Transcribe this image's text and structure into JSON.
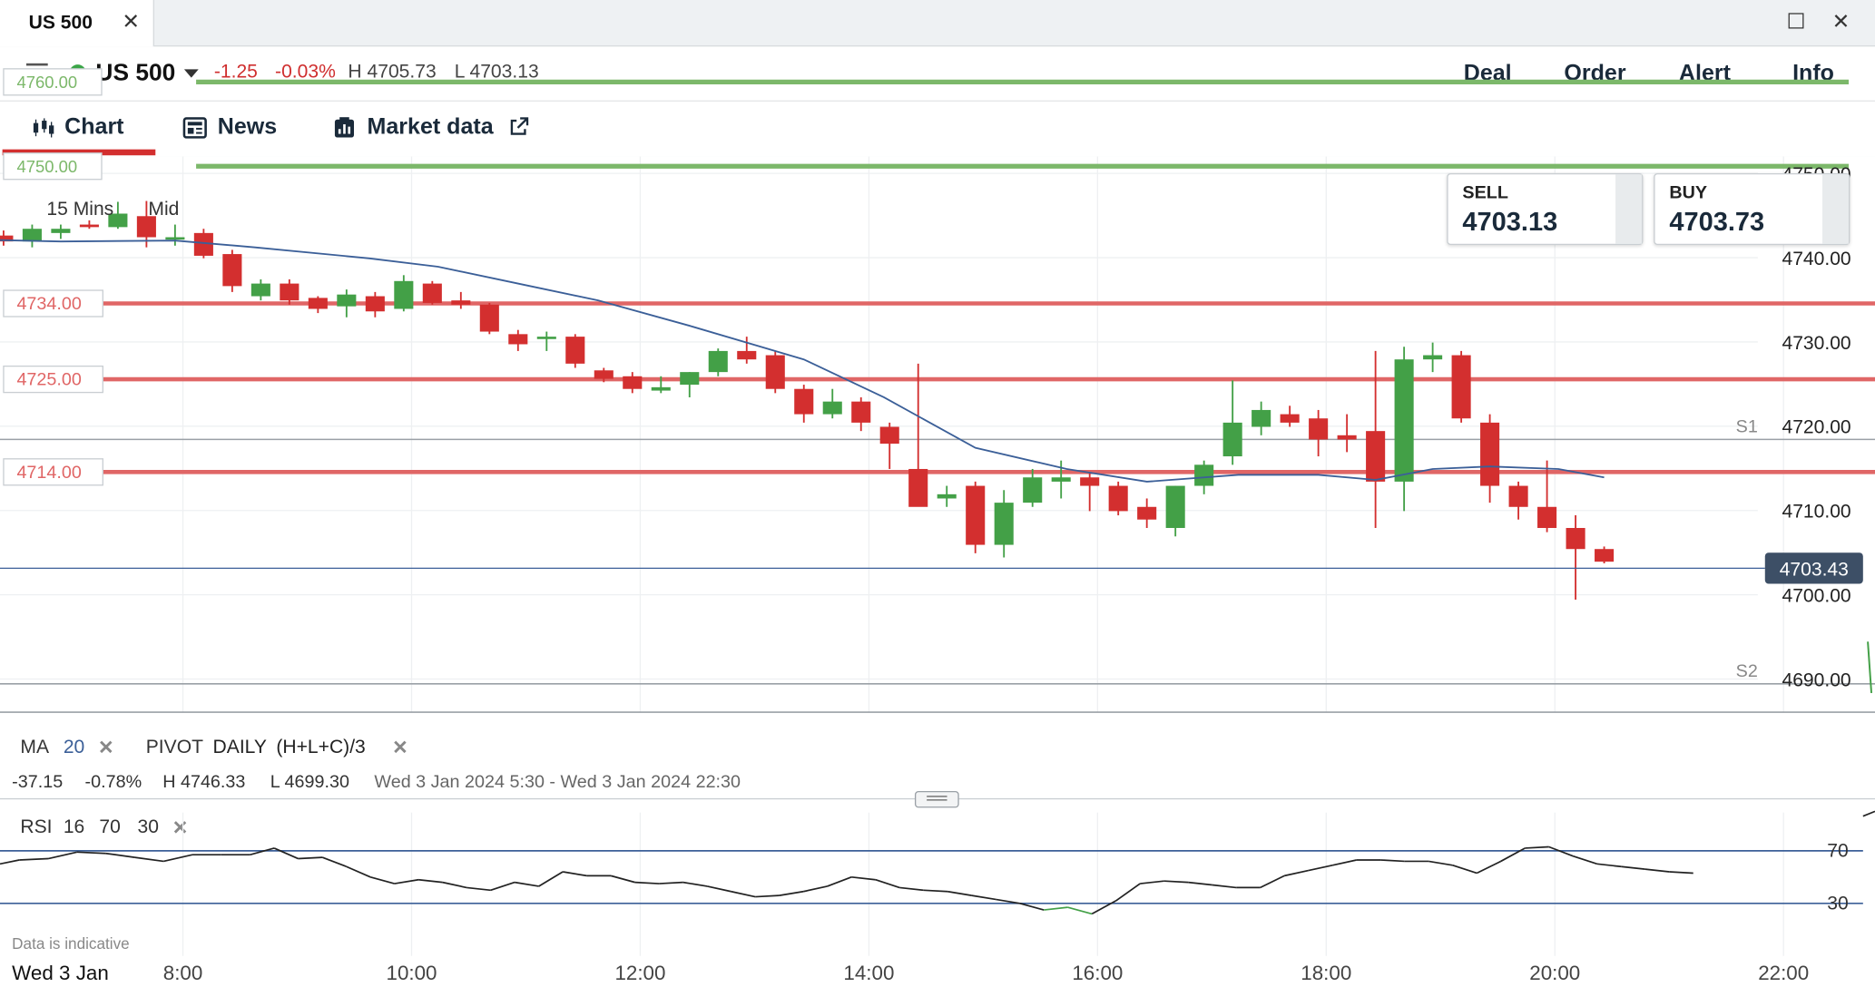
{
  "window": {
    "tab_title": "US 500",
    "close_glyph": "✕",
    "maximize_glyph": "☐",
    "window_close_glyph": "✕"
  },
  "header": {
    "symbol": "US 500",
    "status_color": "#3aa547",
    "change": "-1.25",
    "change_pct": "-0.03%",
    "high": "H 4705.73",
    "low": "L 4703.13",
    "actions": [
      "Deal",
      "Order",
      "Alert",
      "Info"
    ]
  },
  "tabs": {
    "chart": "Chart",
    "news": "News",
    "market_data": "Market data"
  },
  "chart_controls": {
    "interval": "15 Mins",
    "price_type": "Mid"
  },
  "quote": {
    "sell_label": "SELL",
    "sell": "4703.13",
    "buy_label": "BUY",
    "buy": "4703.73"
  },
  "chart_data": {
    "type": "candlestick",
    "ylim": [
      4685.5,
      4752
    ],
    "yticks": [
      "4690.00",
      "4700.00",
      "4710.00",
      "4720.00",
      "4730.00",
      "4740.00",
      "4750.00"
    ],
    "xlim_hours": [
      6.4,
      22.8
    ],
    "xticks": [
      {
        "h": 8,
        "label": "8:00"
      },
      {
        "h": 10,
        "label": "10:00"
      },
      {
        "h": 12,
        "label": "12:00"
      },
      {
        "h": 14,
        "label": "14:00"
      },
      {
        "h": 16,
        "label": "16:00"
      },
      {
        "h": 18,
        "label": "18:00"
      },
      {
        "h": 20,
        "label": "20:00"
      },
      {
        "h": 22,
        "label": "22:00"
      }
    ],
    "date_label": "Wed 3 Jan",
    "current_price": "4703.43",
    "current_value": 4703.43,
    "colors": {
      "up": "#43a047",
      "down": "#d32f2f",
      "ma": "#3b5f98",
      "level": "#e06666",
      "alert": "#7cb86a"
    },
    "alert_lines": [
      {
        "value": 4760,
        "label": "4760.00"
      },
      {
        "value": 4750,
        "label": "4750.00"
      }
    ],
    "levels": [
      {
        "value": 4734,
        "label": "4734.00"
      },
      {
        "value": 4725,
        "label": "4725.00"
      },
      {
        "value": 4714,
        "label": "4714.00"
      }
    ],
    "pivots": [
      {
        "value": 4719,
        "label": "S1"
      },
      {
        "value": 4690,
        "label": "S2"
      }
    ],
    "candles": [
      {
        "t": 6.5,
        "o": 4741.5,
        "h": 4741.8,
        "l": 4741.0,
        "c": 4741.2
      },
      {
        "t": 6.75,
        "o": 4740.8,
        "h": 4742.0,
        "l": 4740.5,
        "c": 4741.8
      },
      {
        "t": 7.0,
        "o": 4741.5,
        "h": 4742.5,
        "l": 4741.0,
        "c": 4742.2
      },
      {
        "t": 7.25,
        "o": 4742.2,
        "h": 4744.0,
        "l": 4742.0,
        "c": 4743.8
      },
      {
        "t": 7.5,
        "o": 4743.5,
        "h": 4743.8,
        "l": 4742.5,
        "c": 4743.2
      },
      {
        "t": 7.75,
        "o": 4743.5,
        "h": 4743.8,
        "l": 4742.0,
        "c": 4742.3
      },
      {
        "t": 8.0,
        "o": 4742.2,
        "h": 4742.8,
        "l": 4741.0,
        "c": 4741.5
      },
      {
        "t": 8.25,
        "o": 4741.5,
        "h": 4743.5,
        "l": 4740.8,
        "c": 4743.0
      },
      {
        "t": 8.5,
        "o": 4742.5,
        "h": 4743.5,
        "l": 4741.8,
        "c": 4743.0
      },
      {
        "t": 8.75,
        "o": 4743.5,
        "h": 4744.0,
        "l": 4743.0,
        "c": 4743.2
      },
      {
        "t": 9.0,
        "o": 4743.2,
        "h": 4746.2,
        "l": 4743.0,
        "c": 4744.8
      },
      {
        "t": 9.25,
        "o": 4744.5,
        "h": 4746.3,
        "l": 4740.8,
        "c": 4742.0
      },
      {
        "t": 9.5,
        "o": 4742.0,
        "h": 4743.5,
        "l": 4741.0,
        "c": 4742.0
      },
      {
        "t": 9.75,
        "o": 4742.5,
        "h": 4743.0,
        "l": 4739.5,
        "c": 4739.8
      },
      {
        "t": 10.0,
        "o": 4740.0,
        "h": 4740.5,
        "l": 4735.5,
        "c": 4736.2
      },
      {
        "t": 10.25,
        "o": 4735.0,
        "h": 4737.0,
        "l": 4734.5,
        "c": 4736.5
      },
      {
        "t": 10.5,
        "o": 4736.5,
        "h": 4737.0,
        "l": 4734.0,
        "c": 4734.5
      },
      {
        "t": 10.75,
        "o": 4734.8,
        "h": 4735.0,
        "l": 4733.0,
        "c": 4733.5
      },
      {
        "t": 11.0,
        "o": 4733.8,
        "h": 4735.8,
        "l": 4732.5,
        "c": 4735.2
      },
      {
        "t": 11.25,
        "o": 4735.0,
        "h": 4735.5,
        "l": 4732.5,
        "c": 4733.2
      },
      {
        "t": 11.5,
        "o": 4733.5,
        "h": 4737.5,
        "l": 4733.2,
        "c": 4736.8
      },
      {
        "t": 11.75,
        "o": 4736.5,
        "h": 4736.8,
        "l": 4734.0,
        "c": 4734.2
      },
      {
        "t": 12.0,
        "o": 4734.5,
        "h": 4735.5,
        "l": 4733.5,
        "c": 4734.0
      },
      {
        "t": 12.25,
        "o": 4734.0,
        "h": 4734.2,
        "l": 4730.5,
        "c": 4730.8
      },
      {
        "t": 12.5,
        "o": 4730.5,
        "h": 4731.0,
        "l": 4728.5,
        "c": 4729.3
      },
      {
        "t": 12.75,
        "o": 4730.0,
        "h": 4730.8,
        "l": 4728.5,
        "c": 4730.2
      },
      {
        "t": 13.0,
        "o": 4730.2,
        "h": 4730.5,
        "l": 4726.5,
        "c": 4727.0
      },
      {
        "t": 13.25,
        "o": 4726.2,
        "h": 4726.5,
        "l": 4724.8,
        "c": 4725.2
      },
      {
        "t": 13.5,
        "o": 4725.5,
        "h": 4726.0,
        "l": 4723.5,
        "c": 4724.0
      },
      {
        "t": 13.75,
        "o": 4723.8,
        "h": 4725.5,
        "l": 4723.5,
        "c": 4724.2
      },
      {
        "t": 14.0,
        "o": 4724.5,
        "h": 4726.0,
        "l": 4723.0,
        "c": 4726.0
      },
      {
        "t": 14.25,
        "o": 4726.0,
        "h": 4728.8,
        "l": 4725.5,
        "c": 4728.5
      },
      {
        "t": 14.5,
        "o": 4728.5,
        "h": 4730.2,
        "l": 4727.0,
        "c": 4727.5
      },
      {
        "t": 14.75,
        "o": 4728.0,
        "h": 4728.5,
        "l": 4723.5,
        "c": 4724.0
      },
      {
        "t": 15.0,
        "o": 4724.0,
        "h": 4724.5,
        "l": 4720.0,
        "c": 4721.0
      },
      {
        "t": 15.25,
        "o": 4721.0,
        "h": 4724.0,
        "l": 4720.5,
        "c": 4722.5
      },
      {
        "t": 15.5,
        "o": 4722.5,
        "h": 4723.0,
        "l": 4719.0,
        "c": 4720.0
      },
      {
        "t": 15.75,
        "o": 4719.5,
        "h": 4720.0,
        "l": 4714.5,
        "c": 4717.5
      },
      {
        "t": 16.0,
        "o": 4714.5,
        "h": 4727.0,
        "l": 4710.5,
        "c": 4710.0
      },
      {
        "t": 16.25,
        "o": 4711.0,
        "h": 4712.5,
        "l": 4710.0,
        "c": 4711.5
      },
      {
        "t": 16.5,
        "o": 4712.5,
        "h": 4713.0,
        "l": 4704.5,
        "c": 4705.5
      },
      {
        "t": 16.75,
        "o": 4705.5,
        "h": 4712.0,
        "l": 4704.0,
        "c": 4710.5
      },
      {
        "t": 17.0,
        "o": 4710.5,
        "h": 4714.5,
        "l": 4710.0,
        "c": 4713.5
      },
      {
        "t": 17.25,
        "o": 4713.0,
        "h": 4715.5,
        "l": 4711.0,
        "c": 4713.5
      },
      {
        "t": 17.5,
        "o": 4713.5,
        "h": 4714.0,
        "l": 4709.5,
        "c": 4712.5
      },
      {
        "t": 17.75,
        "o": 4712.5,
        "h": 4713.0,
        "l": 4709.0,
        "c": 4709.5
      },
      {
        "t": 18.0,
        "o": 4710.0,
        "h": 4711.0,
        "l": 4707.5,
        "c": 4708.5
      },
      {
        "t": 18.25,
        "o": 4707.5,
        "h": 4712.5,
        "l": 4706.5,
        "c": 4712.5
      },
      {
        "t": 18.5,
        "o": 4712.5,
        "h": 4715.5,
        "l": 4711.5,
        "c": 4715.0
      },
      {
        "t": 18.75,
        "o": 4716.0,
        "h": 4725.0,
        "l": 4715.0,
        "c": 4720.0
      },
      {
        "t": 19.0,
        "o": 4719.5,
        "h": 4722.5,
        "l": 4718.5,
        "c": 4721.5
      },
      {
        "t": 19.25,
        "o": 4721.0,
        "h": 4722.0,
        "l": 4719.5,
        "c": 4720.0
      },
      {
        "t": 19.5,
        "o": 4720.5,
        "h": 4721.5,
        "l": 4716.0,
        "c": 4718.0
      },
      {
        "t": 19.75,
        "o": 4718.5,
        "h": 4721.0,
        "l": 4716.5,
        "c": 4718.0
      },
      {
        "t": 20.0,
        "o": 4719.0,
        "h": 4728.5,
        "l": 4707.5,
        "c": 4713.0
      },
      {
        "t": 20.25,
        "o": 4713.0,
        "h": 4729.0,
        "l": 4709.5,
        "c": 4727.5
      },
      {
        "t": 20.5,
        "o": 4727.5,
        "h": 4729.5,
        "l": 4726.0,
        "c": 4728.0
      },
      {
        "t": 20.75,
        "o": 4728.0,
        "h": 4728.5,
        "l": 4720.0,
        "c": 4720.5
      },
      {
        "t": 21.0,
        "o": 4720.0,
        "h": 4721.0,
        "l": 4710.5,
        "c": 4712.5
      },
      {
        "t": 21.25,
        "o": 4712.5,
        "h": 4713.0,
        "l": 4708.5,
        "c": 4710.0
      },
      {
        "t": 21.5,
        "o": 4710.0,
        "h": 4715.5,
        "l": 4707.0,
        "c": 4707.5
      },
      {
        "t": 21.75,
        "o": 4707.5,
        "h": 4709.0,
        "l": 4699.0,
        "c": 4705.0
      },
      {
        "t": 22.0,
        "o": 4705.0,
        "h": 4705.3,
        "l": 4703.3,
        "c": 4703.5
      }
    ],
    "ma": [
      [
        6.4,
        4742.5
      ],
      [
        7.5,
        4741.8
      ],
      [
        8.5,
        4741.5
      ],
      [
        9.5,
        4741.6
      ],
      [
        10.2,
        4740.8
      ],
      [
        11.2,
        4739.5
      ],
      [
        11.8,
        4738.5
      ],
      [
        12.5,
        4736.5
      ],
      [
        13.2,
        4734.5
      ],
      [
        14.0,
        4731.5
      ],
      [
        15.0,
        4727.5
      ],
      [
        15.7,
        4723.0
      ],
      [
        16.5,
        4717.0
      ],
      [
        17.3,
        4714.5
      ],
      [
        18.0,
        4713.0
      ],
      [
        18.8,
        4713.8
      ],
      [
        19.5,
        4713.8
      ],
      [
        20.0,
        4713.2
      ],
      [
        20.5,
        4714.5
      ],
      [
        21.0,
        4714.8
      ],
      [
        21.6,
        4714.5
      ],
      [
        22.0,
        4713.5
      ]
    ]
  },
  "indicator_bar": {
    "ma_label": "MA",
    "ma_period": "20",
    "pivot_label": "PIVOT",
    "pivot_period": "DAILY",
    "pivot_formula": "(H+L+C)/3",
    "remove_glyph": "✕"
  },
  "summary": {
    "change": "-37.15",
    "change_pct": "-0.78%",
    "high": "H 4746.33",
    "low": "L 4699.30",
    "range": "Wed 3 Jan 2024 5:30 - Wed 3 Jan 2024 22:30"
  },
  "rsi": {
    "label": "RSI",
    "period": "16",
    "upper": "70",
    "lower": "30",
    "remove_glyph": "✕",
    "axis_labels": [
      "70",
      "30"
    ],
    "disclaimer": "Data is indicative",
    "points": [
      [
        6.4,
        60
      ],
      [
        6.6,
        63
      ],
      [
        6.9,
        64
      ],
      [
        7.2,
        69
      ],
      [
        7.5,
        68
      ],
      [
        7.8,
        65
      ],
      [
        8.1,
        62
      ],
      [
        8.4,
        67
      ],
      [
        8.7,
        67
      ],
      [
        9.0,
        67
      ],
      [
        9.25,
        72
      ],
      [
        9.5,
        64
      ],
      [
        9.75,
        65
      ],
      [
        10.0,
        58
      ],
      [
        10.25,
        50
      ],
      [
        10.5,
        45
      ],
      [
        10.75,
        48
      ],
      [
        11.0,
        46
      ],
      [
        11.25,
        42
      ],
      [
        11.5,
        40
      ],
      [
        11.75,
        46
      ],
      [
        12.0,
        43
      ],
      [
        12.25,
        54
      ],
      [
        12.5,
        51
      ],
      [
        12.75,
        51
      ],
      [
        13.0,
        46
      ],
      [
        13.25,
        45
      ],
      [
        13.5,
        46
      ],
      [
        13.75,
        43
      ],
      [
        14.0,
        39
      ],
      [
        14.25,
        35
      ],
      [
        14.5,
        36
      ],
      [
        14.75,
        39
      ],
      [
        15.0,
        43
      ],
      [
        15.25,
        50
      ],
      [
        15.5,
        48
      ],
      [
        15.75,
        42
      ],
      [
        16.0,
        40
      ],
      [
        16.25,
        39
      ],
      [
        16.5,
        36
      ],
      [
        16.75,
        33
      ],
      [
        17.0,
        30
      ],
      [
        17.25,
        25
      ],
      [
        17.5,
        27
      ],
      [
        17.75,
        22
      ],
      [
        18.0,
        32
      ],
      [
        18.25,
        45
      ],
      [
        18.5,
        47
      ],
      [
        18.75,
        46
      ],
      [
        19.0,
        44
      ],
      [
        19.25,
        42
      ],
      [
        19.5,
        42
      ],
      [
        19.75,
        51
      ],
      [
        20.0,
        55
      ],
      [
        20.25,
        59
      ],
      [
        20.5,
        63
      ],
      [
        20.75,
        63
      ],
      [
        21.0,
        62
      ],
      [
        21.25,
        62
      ],
      [
        21.5,
        59
      ],
      [
        21.75,
        53
      ],
      [
        22.0,
        62
      ],
      [
        22.25,
        72
      ],
      [
        22.5,
        73
      ],
      [
        22.75,
        66
      ],
      [
        23.0,
        60
      ],
      [
        23.25,
        58
      ],
      [
        23.5,
        56
      ],
      [
        23.75,
        54
      ],
      [
        24.0,
        53
      ]
    ]
  }
}
